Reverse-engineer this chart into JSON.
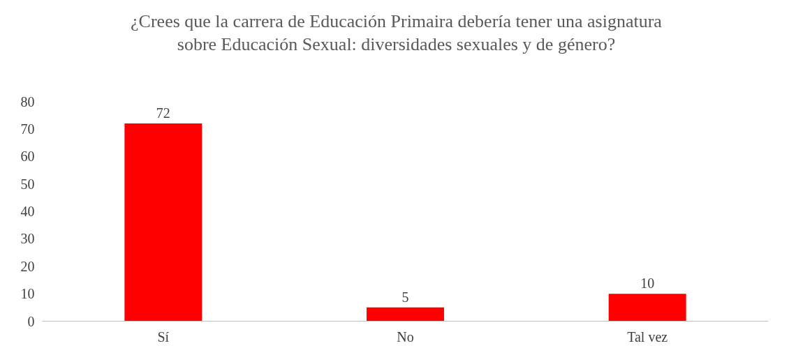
{
  "chart_data": {
    "type": "bar",
    "title": "¿Crees que la carrera de Educación Primaira debería tener una asignatura sobre Educación Sexual: diversidades sexuales y de género?",
    "categories": [
      "Sí",
      "No",
      "Tal vez"
    ],
    "values": [
      72,
      5,
      10
    ],
    "color": "#ff0000",
    "ylim": [
      0,
      80
    ],
    "yticks": [
      0,
      10,
      20,
      30,
      40,
      50,
      60,
      70,
      80
    ],
    "grid": false,
    "data_labels": true
  }
}
